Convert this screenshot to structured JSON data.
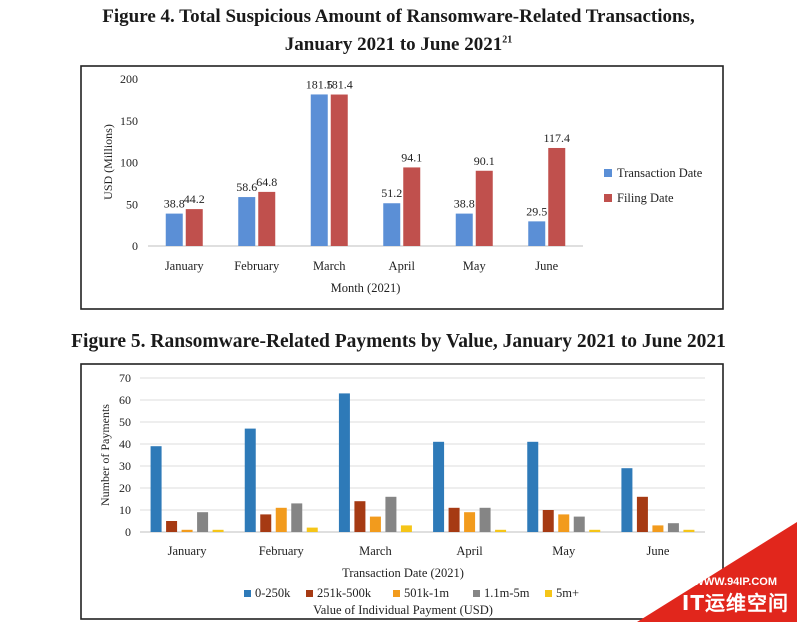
{
  "figure4": {
    "title_line1": "Figure 4. Total Suspicious Amount of Ransomware-Related Transactions,",
    "title_line2": "January 2021 to June 2021",
    "title_footnote": "21"
  },
  "figure5": {
    "title": "Figure 5. Ransomware-Related Payments by Value, January 2021 to June 2021"
  },
  "watermark": {
    "url": "WWW.94IP.COM",
    "name": "IT运维空间"
  },
  "chart_data": [
    {
      "type": "bar",
      "categories": [
        "January",
        "February",
        "March",
        "April",
        "May",
        "June"
      ],
      "series": [
        {
          "name": "Transaction Date",
          "values": [
            38.8,
            58.6,
            181.5,
            51.2,
            38.8,
            29.5
          ],
          "color": "#5b8fd6"
        },
        {
          "name": "Filing Date",
          "values": [
            44.2,
            64.8,
            181.4,
            94.1,
            90.1,
            117.4
          ],
          "color": "#c0504d"
        }
      ],
      "data_labels": [
        [
          "38.8",
          "58.6",
          "181.5",
          "51.2",
          "38.8",
          "29.5"
        ],
        [
          "44.2",
          "64.8",
          "181.4",
          "94.1",
          "90.1",
          "117.4"
        ]
      ],
      "xlabel": "Month (2021)",
      "ylabel": "USD (Millions)",
      "ylim": [
        0,
        200
      ],
      "yticks": [
        "0",
        "50",
        "100",
        "150",
        "200"
      ],
      "grid": false,
      "legend_position": "right"
    },
    {
      "type": "bar",
      "categories": [
        "January",
        "February",
        "March",
        "April",
        "May",
        "June"
      ],
      "series": [
        {
          "name": "0-250k",
          "values": [
            39,
            47,
            63,
            41,
            41,
            29
          ],
          "color": "#2e7ab8"
        },
        {
          "name": "251k-500k",
          "values": [
            5,
            8,
            14,
            11,
            10,
            16
          ],
          "color": "#a63a13"
        },
        {
          "name": "501k-1m",
          "values": [
            1,
            11,
            7,
            9,
            8,
            3
          ],
          "color": "#f29b1d"
        },
        {
          "name": "1.1m-5m",
          "values": [
            9,
            13,
            16,
            11,
            7,
            4
          ],
          "color": "#858585"
        },
        {
          "name": "5m+",
          "values": [
            1,
            2,
            3,
            1,
            1,
            1
          ],
          "color": "#f5c518"
        }
      ],
      "xlabel": "Transaction Date (2021)",
      "ylabel": "Number of Payments",
      "legend_title": "Value of Individual Payment (USD)",
      "ylim": [
        0,
        70
      ],
      "yticks": [
        "0",
        "10",
        "20",
        "30",
        "40",
        "50",
        "60",
        "70"
      ],
      "grid": true,
      "legend_position": "bottom"
    }
  ]
}
